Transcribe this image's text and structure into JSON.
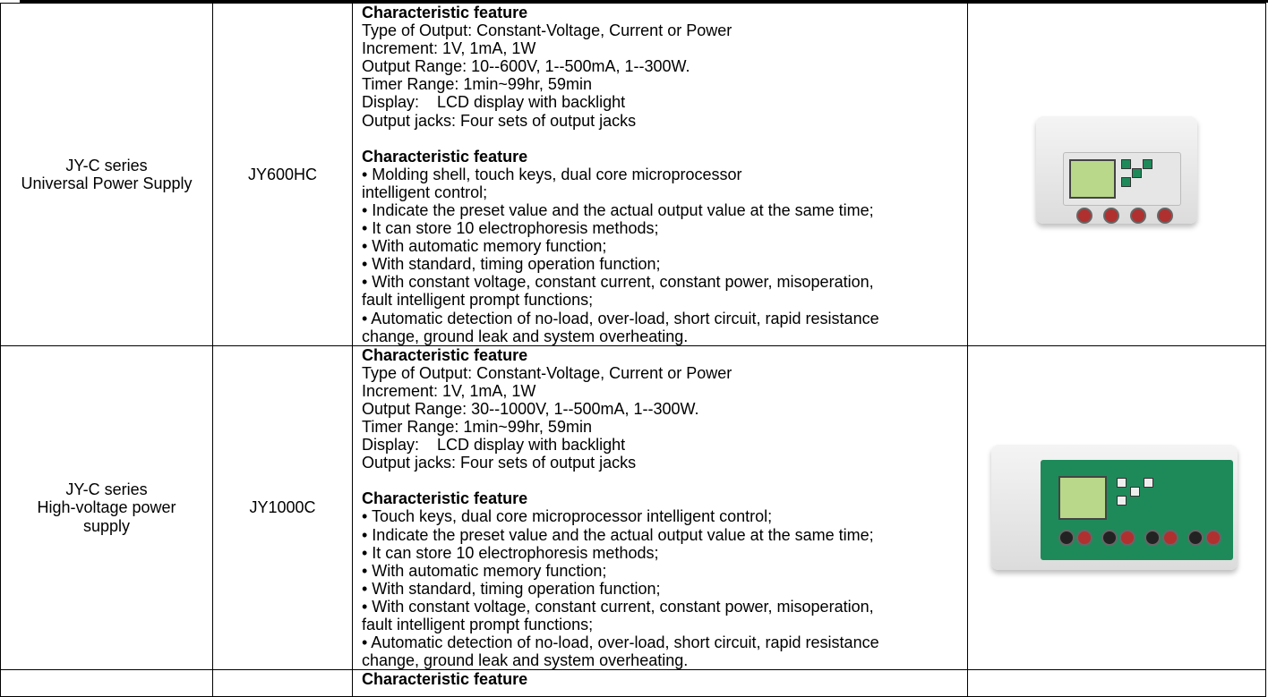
{
  "rows": [
    {
      "series": "JY-C series",
      "name": "Universal Power Supply",
      "model": "JY600HC",
      "spec_heading": "Characteristic feature",
      "spec_lines": [
        "Type of Output: Constant-Voltage, Current or Power",
        "Increment: 1V, 1mA, 1W",
        "Output Range: 10--600V, 1--500mA, 1--300W.",
        "Timer Range: 1min~99hr, 59min",
        "Display:    LCD display with backlight",
        "Output jacks: Four sets of output jacks"
      ],
      "feature_heading": "Characteristic feature",
      "feature_lines": [
        "• Molding shell, touch keys, dual core microprocessor",
        "intelligent control;",
        "• Indicate the preset value and the actual output value at the same time;",
        "• It can store 10 electrophoresis methods;",
        "• With automatic memory function;",
        "• With standard, timing operation function;",
        "• With constant voltage, constant current, constant power, misoperation,",
        "fault intelligent prompt functions;",
        "• Automatic detection of no-load, over-load, short circuit, rapid resistance",
        "change, ground leak and system overheating."
      ],
      "image": "power-supply-device-photo"
    },
    {
      "series": "JY-C series",
      "name_line1": "High-voltage power",
      "name_line2": "supply",
      "model": "JY1000C",
      "spec_heading": "Characteristic feature",
      "spec_lines": [
        "Type of Output: Constant-Voltage, Current or Power",
        "Increment: 1V, 1mA, 1W",
        "Output Range: 30--1000V, 1--500mA, 1--300W.",
        "Timer Range: 1min~99hr, 59min",
        "Display:    LCD display with backlight",
        "Output jacks: Four sets of output jacks"
      ],
      "feature_heading": "Characteristic feature",
      "feature_lines": [
        "• Touch keys, dual core microprocessor intelligent control;",
        "• Indicate the preset value and the actual output value at the same time;",
        "• It can store 10 electrophoresis methods;",
        "• With automatic memory function;",
        "• With standard, timing operation function;",
        "• With constant voltage, constant current, constant power, misoperation,",
        "fault intelligent prompt functions;",
        "• Automatic detection of no-load, over-load, short circuit, rapid resistance",
        "change, ground leak and system overheating."
      ],
      "image": "power-supply-device-photo"
    },
    {
      "spec_heading": "Characteristic feature"
    }
  ]
}
